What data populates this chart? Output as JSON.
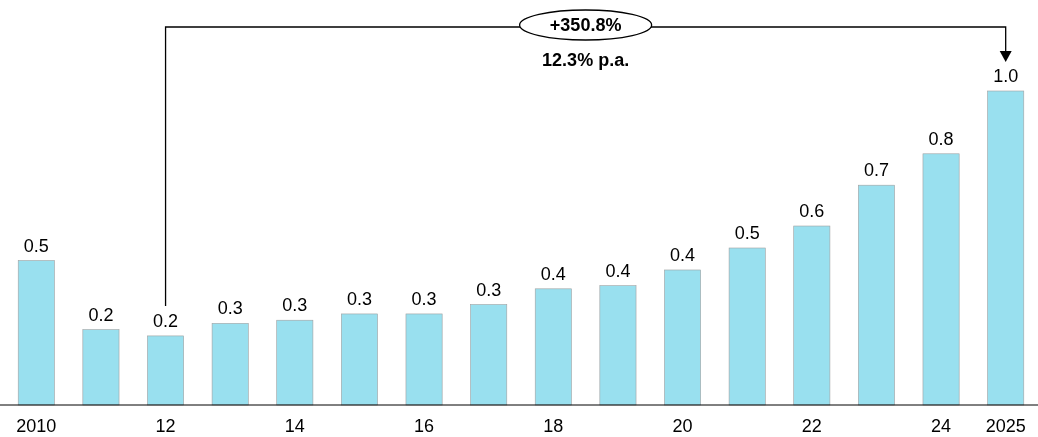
{
  "chart_data": {
    "type": "bar",
    "categories": [
      "2010",
      null,
      "12",
      null,
      "14",
      null,
      "16",
      null,
      "18",
      null,
      "20",
      null,
      "22",
      null,
      "24",
      "2025"
    ],
    "values": [
      0.46,
      0.24,
      0.22,
      0.26,
      0.27,
      0.29,
      0.29,
      0.32,
      0.37,
      0.38,
      0.43,
      0.5,
      0.57,
      0.7,
      0.8,
      1.0
    ],
    "value_labels": [
      "0.5",
      "0.2",
      "0.2",
      "0.3",
      "0.3",
      "0.3",
      "0.3",
      "0.3",
      "0.4",
      "0.4",
      "0.4",
      "0.5",
      "0.6",
      "0.7",
      "0.8",
      "1.0"
    ],
    "color": "#99e0ef",
    "annotations": [
      "+350.8%",
      "12.3% p.a."
    ]
  }
}
